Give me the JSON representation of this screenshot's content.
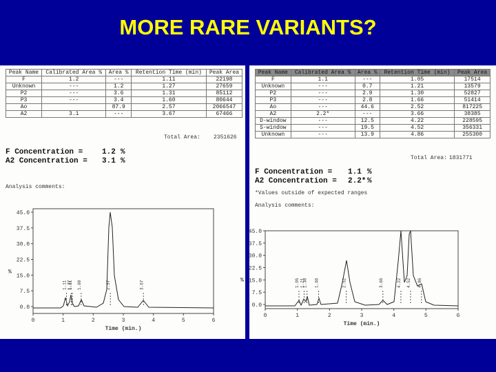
{
  "title": "MORE RARE VARIANTS?",
  "reports": [
    {
      "table": {
        "header": [
          "Peak Name",
          "Calibrated Area %",
          "Area %",
          "Retention Time (min)",
          "Peak Area"
        ],
        "rows": [
          [
            "F",
            "1.2",
            "---",
            "1.11",
            "22198"
          ],
          [
            "Unknown",
            "---",
            "1.2",
            "1.27",
            "27659"
          ],
          [
            "P2",
            "---",
            "3.6",
            "1.31",
            "85112"
          ],
          [
            "P3",
            "---",
            "3.4",
            "1.60",
            "80644"
          ],
          [
            "Ao",
            null,
            "87.9",
            "2.57",
            "2066547"
          ],
          [
            "A2",
            "3.1",
            "---",
            "3.67",
            "67466"
          ]
        ]
      },
      "total_area_label": "Total Area:",
      "total_area": "2351626",
      "concentrations": [
        {
          "label": "F Concentration =",
          "value": "1.2",
          "unit": "%"
        },
        {
          "label": "A2 Concentration =",
          "value": "3.1",
          "unit": "%"
        }
      ],
      "comments_label": "Analysis comments:",
      "chart": {
        "ylabel": "%",
        "xlabel": "Time (min.)",
        "ylim": [
          0,
          45
        ],
        "xlim": [
          0,
          6
        ],
        "yticks": [
          {
            "value": 45,
            "label": "45.0"
          },
          {
            "value": 37.5,
            "label": "37.5"
          },
          {
            "value": 30,
            "label": "30.0"
          },
          {
            "value": 22.5,
            "label": "22.5"
          },
          {
            "value": 15,
            "label": "15.0"
          },
          {
            "value": 7.5,
            "label": "7.5"
          },
          {
            "value": 0,
            "label": "0.0"
          }
        ],
        "xticks": [
          0,
          1,
          2,
          3,
          4,
          5,
          6
        ]
      }
    },
    {
      "table": {
        "header": [
          "Peak Name",
          "Calibrated Area %",
          "Area %",
          "Retention Time (min)",
          "Peak Area"
        ],
        "rows": [
          [
            "F",
            "1.1",
            "---",
            "1.05",
            "17514"
          ],
          [
            "Unknown",
            "---",
            "0.7",
            "1.21",
            "13579"
          ],
          [
            "P2",
            "---",
            "2.9",
            "1.30",
            "52827"
          ],
          [
            "P3",
            "---",
            "2.8",
            "1.66",
            "51414"
          ],
          [
            "Ao",
            "---",
            "44.6",
            "2.52",
            "817225"
          ],
          [
            "A2",
            "2.2*",
            "---",
            "3.66",
            "38385"
          ],
          [
            "D-window",
            "---",
            "12.5",
            "4.22",
            "228595"
          ],
          [
            "S-window",
            "---",
            "19.5",
            "4.52",
            "356331"
          ],
          [
            "Unknown",
            "---",
            "13.9",
            "4.86",
            "255300"
          ]
        ]
      },
      "total_area_label": "Total Area:",
      "total_area": "1831771",
      "concentrations": [
        {
          "label": "F Concentration =",
          "value": "1.1",
          "unit": "%"
        },
        {
          "label": "A2 Concentration =",
          "value": "2.2*",
          "unit": "%"
        }
      ],
      "footnote": "*Values outside of expected ranges",
      "comments_label": "Analysis comments:",
      "chart": {
        "ylabel": "%",
        "xlabel": "Time (min.)",
        "ylim": [
          0,
          45
        ],
        "xlim": [
          0,
          6
        ],
        "yticks": [
          {
            "value": 45,
            "label": "45.0"
          },
          {
            "value": 37.5,
            "label": "37.5"
          },
          {
            "value": 30,
            "label": "30.0"
          },
          {
            "value": 22.5,
            "label": "22.5"
          },
          {
            "value": 15,
            "label": "15.0"
          },
          {
            "value": 7.5,
            "label": "7.5"
          },
          {
            "value": 0,
            "label": "0.0"
          }
        ],
        "xticks": [
          0,
          1,
          2,
          3,
          4,
          5,
          6
        ]
      }
    }
  ]
}
